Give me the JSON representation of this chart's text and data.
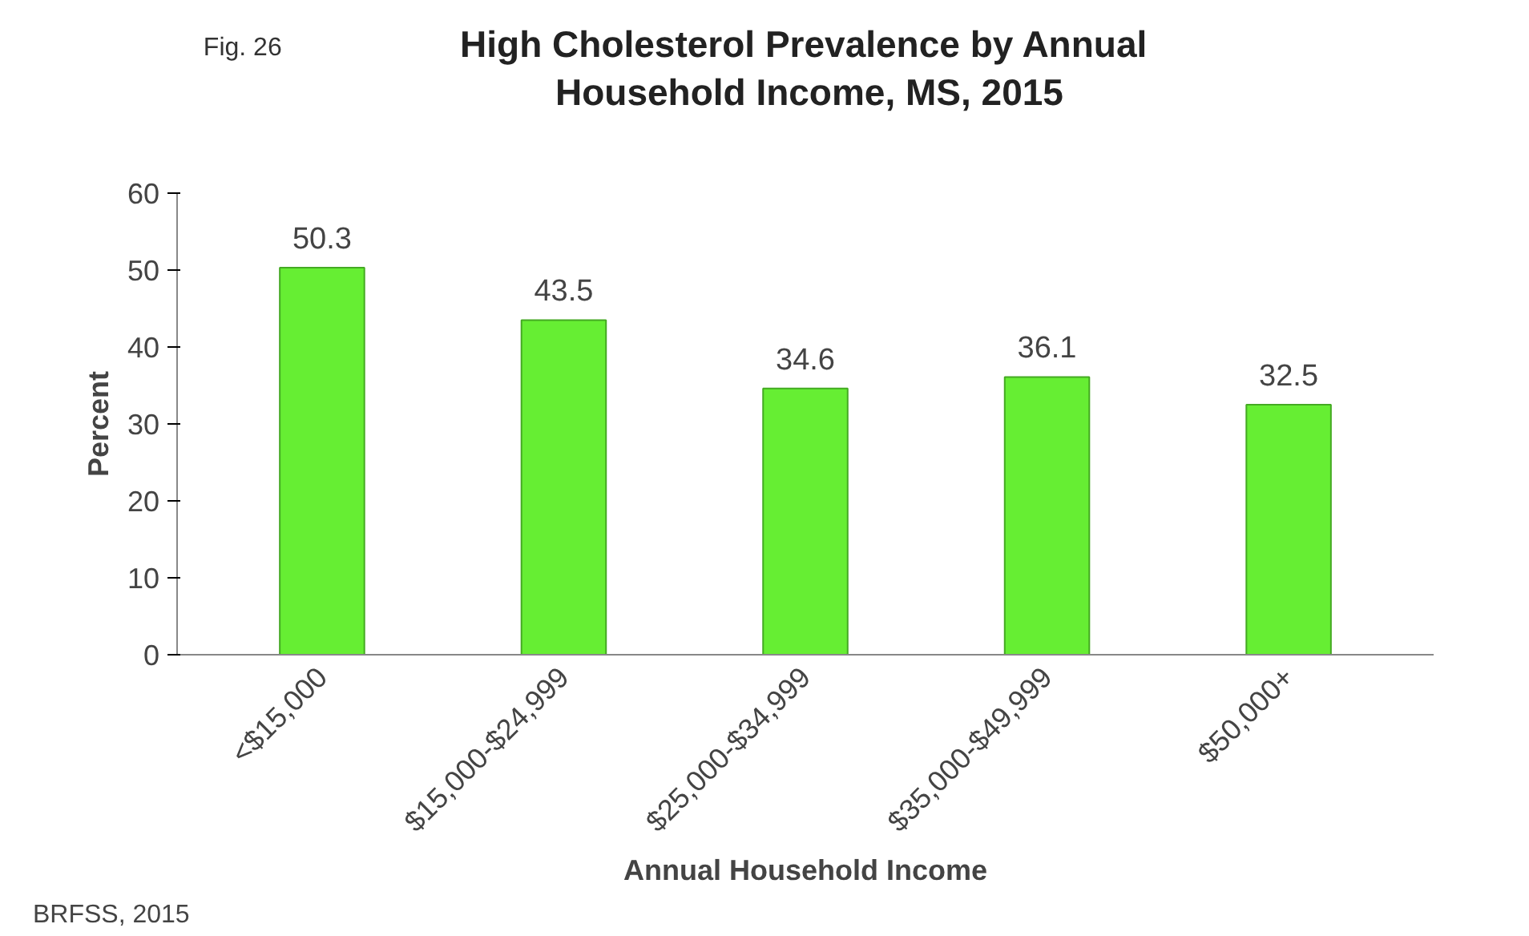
{
  "chart_data": {
    "type": "bar",
    "title": "High Cholesterol Prevalence by  Annual Household Income, MS, 2015",
    "xlabel": "Annual Household Income",
    "ylabel": "Percent",
    "categories": [
      "<$15,000",
      "$15,000-$24,999",
      "$25,000-$34,999",
      "$35,000-$49,999",
      "$50,000+"
    ],
    "values": [
      50.3,
      43.5,
      34.6,
      36.1,
      32.5
    ],
    "color": "#66ee33",
    "ylim": [
      0,
      60
    ],
    "yticks": [
      0,
      10,
      20,
      30,
      40,
      50,
      60
    ],
    "data_labels": true,
    "annotations": [
      "Fig. 26",
      "BRFSS, 2015"
    ]
  }
}
